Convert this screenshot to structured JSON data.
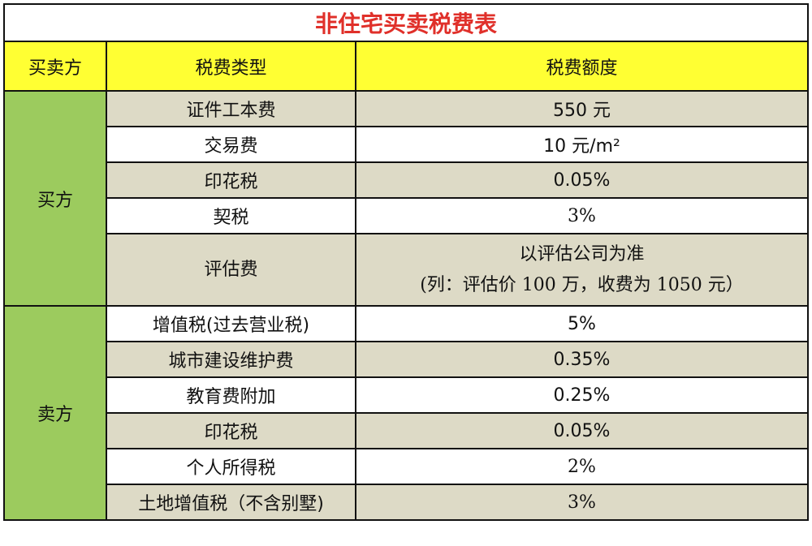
{
  "title": "非住宅买卖税费表",
  "headers": [
    "买卖方",
    "税费类型",
    "税费额度"
  ],
  "buyer": {
    "label": "买方",
    "rows": [
      {
        "type": "证件工本费",
        "amount": "550 元"
      },
      {
        "type": "交易费",
        "amount": "10 元/m²"
      },
      {
        "type": "印花税",
        "amount": "0.05%"
      },
      {
        "type": "契税",
        "amount": "3%"
      },
      {
        "type": "评估费",
        "amount": "以评估公司为准",
        "note": "(列：评估价 100 万，收费为 1050 元）"
      }
    ]
  },
  "seller": {
    "label": "卖方",
    "rows": [
      {
        "type": "增值税(过去营业税)",
        "amount": "5%"
      },
      {
        "type": "城市建设维护费",
        "amount": "0.35%"
      },
      {
        "type": "教育费附加",
        "amount": "0.25%"
      },
      {
        "type": "印花税",
        "amount": "0.05%"
      },
      {
        "type": "个人所得税",
        "amount": "2%"
      },
      {
        "type": "土地增值税（不含别墅)",
        "amount": "3%"
      }
    ]
  },
  "colors": {
    "title": "#e0302a",
    "header_bg": "#ffff33",
    "party_bg": "#9ccb5e",
    "shaded_row": "#dddac6"
  }
}
